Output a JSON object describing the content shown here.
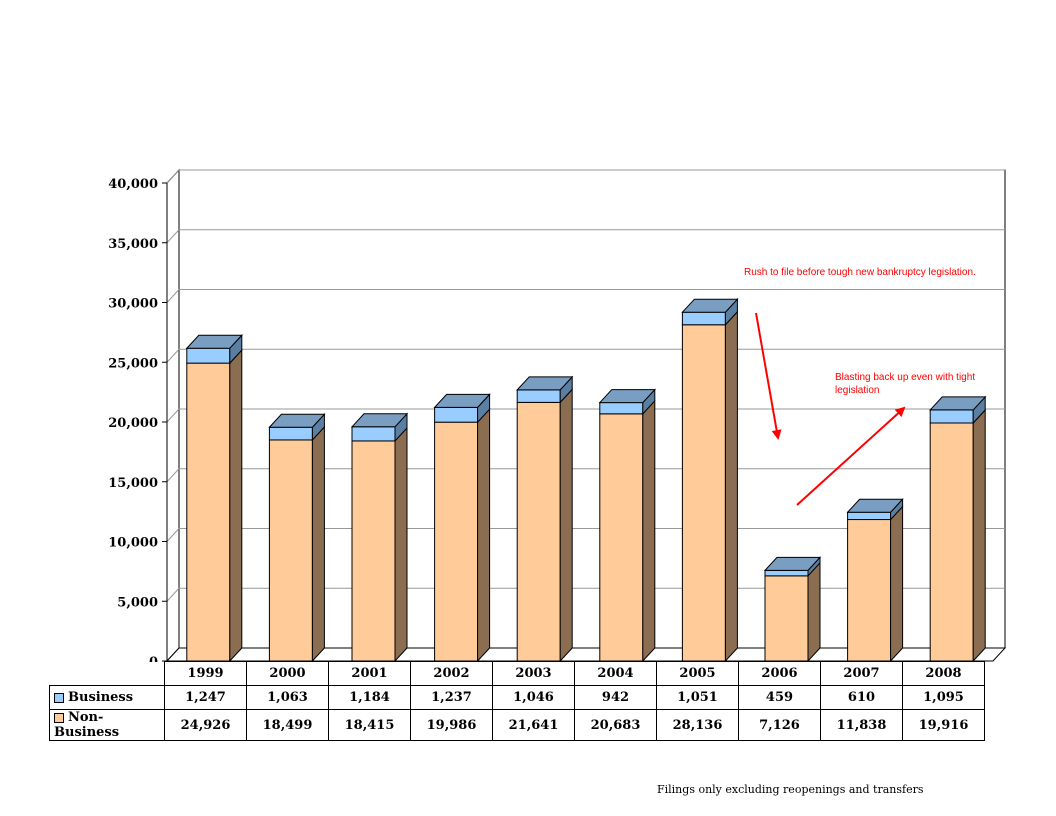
{
  "chart_data": {
    "type": "bar",
    "stacked": true,
    "three_d": true,
    "categories": [
      "1999",
      "2000",
      "2001",
      "2002",
      "2003",
      "2004",
      "2005",
      "2006",
      "2007",
      "2008"
    ],
    "series": [
      {
        "name": "Non-Business",
        "values": [
          24926,
          18499,
          18415,
          19986,
          21641,
          20683,
          28136,
          7126,
          11838,
          19916
        ],
        "display": [
          "24,926",
          "18,499",
          "18,415",
          "19,986",
          "21,641",
          "20,683",
          "28,136",
          "7,126",
          "11,838",
          "19,916"
        ],
        "color": "#ffcc99"
      },
      {
        "name": "Business",
        "values": [
          1247,
          1063,
          1184,
          1237,
          1046,
          942,
          1051,
          459,
          610,
          1095
        ],
        "display": [
          "1,247",
          "1,063",
          "1,184",
          "1,237",
          "1,046",
          "942",
          "1,051",
          "459",
          "610",
          "1,095"
        ],
        "color": "#99ccff"
      }
    ],
    "ylim": [
      0,
      40000
    ],
    "yticks": [
      "40,000",
      "35,000",
      "30,000",
      "25,000",
      "20,000",
      "15,000",
      "10,000",
      "5,000",
      "0"
    ],
    "grid": true,
    "annotations": [
      {
        "text_lines": [
          "Rush to file before tough new bankruptcy legislation."
        ]
      },
      {
        "text_lines": [
          "Blasting back up even with tight",
          "legislation"
        ]
      }
    ],
    "footnote": "Filings only excluding reopenings and transfers"
  }
}
